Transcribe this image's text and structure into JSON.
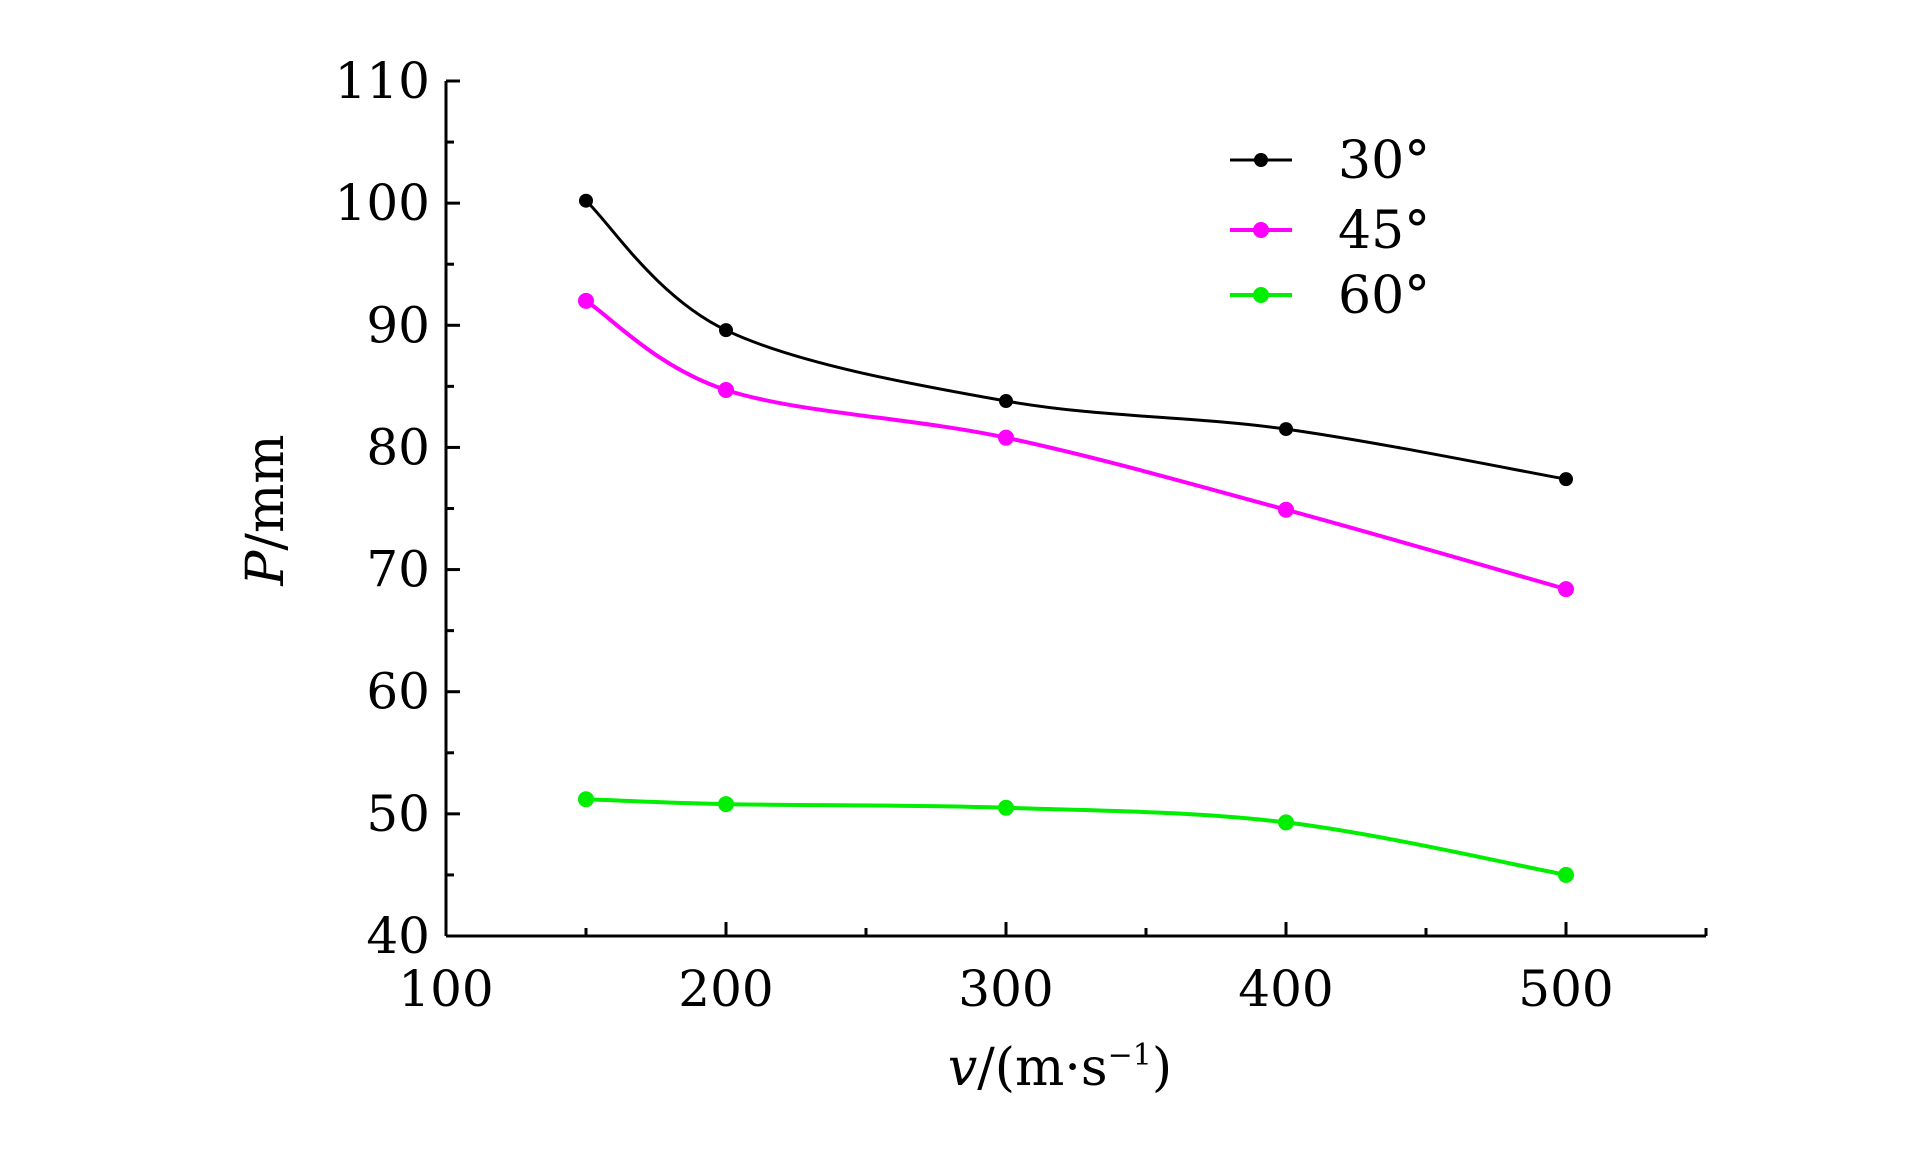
{
  "chart_data": {
    "type": "line",
    "title": "",
    "xlabel_main": "v",
    "xlabel_unit": "/(m·s",
    "xlabel_sup": "−1",
    "xlabel_close": ")",
    "ylabel_main": "P",
    "ylabel_unit": "/mm",
    "xlim": [
      100,
      550
    ],
    "ylim": [
      40,
      110
    ],
    "x_ticks": [
      100,
      200,
      300,
      400,
      500
    ],
    "x_tick_labels": [
      "100",
      "200",
      "300",
      "400",
      "500"
    ],
    "x_minor_ticks": [
      150,
      250,
      350,
      450,
      550
    ],
    "y_ticks": [
      40,
      50,
      60,
      70,
      80,
      90,
      100,
      110
    ],
    "y_tick_labels": [
      "40",
      "50",
      "60",
      "70",
      "80",
      "90",
      "100",
      "110"
    ],
    "y_minor_ticks": [
      45,
      55,
      65,
      75,
      85,
      95,
      105
    ],
    "legend_position": "top-right",
    "x": [
      150,
      200,
      300,
      400,
      500
    ],
    "series": [
      {
        "name": "30°",
        "color": "#000000",
        "values": [
          100.2,
          89.6,
          83.8,
          81.5,
          77.4
        ]
      },
      {
        "name": "45°",
        "color": "#ff00ff",
        "values": [
          92.0,
          84.7,
          80.8,
          74.9,
          68.4
        ]
      },
      {
        "name": "60°",
        "color": "#00ee00",
        "values": [
          51.2,
          50.8,
          50.5,
          49.3,
          45.0
        ]
      }
    ]
  }
}
